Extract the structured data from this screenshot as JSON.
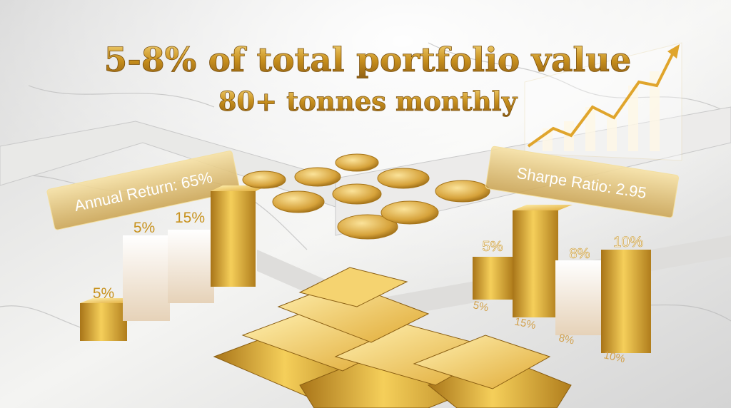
{
  "headline": "5-8% of total portfolio value",
  "subheadline": "80+ tonnes monthly",
  "left_panel": {
    "label": "Annual Return: 65%",
    "bar_labels": [
      "5%",
      "5%",
      "15%"
    ]
  },
  "right_panel": {
    "label": "Sharpe Ratio: 2.95",
    "bar_labels": [
      "5%",
      "8%",
      "10%"
    ],
    "floor_labels": [
      "5%",
      "15%",
      "8%",
      "10%"
    ]
  }
}
